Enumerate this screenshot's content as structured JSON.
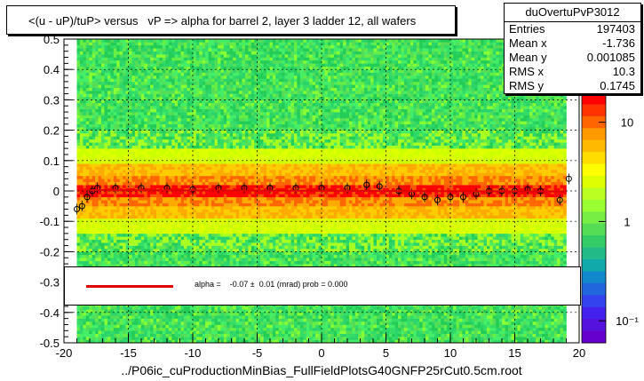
{
  "title": "<(u - uP)/tuP> versus   vP => alpha for barrel 2, layer 3 ladder 12, all wafers",
  "stats": {
    "name": "duOvertuPvP3012",
    "rows": [
      {
        "label": "Entries",
        "value": "197403"
      },
      {
        "label": "Mean x",
        "value": "-1.736"
      },
      {
        "label": "Mean y",
        "value": "0.001085"
      },
      {
        "label": "RMS x",
        "value": "10.3"
      },
      {
        "label": "RMS y",
        "value": "0.1745"
      }
    ]
  },
  "fit": {
    "text": "alpha =    -0.07 ±  0.01 (mrad) prob = 0.000",
    "line_color": "#e00000"
  },
  "footer": "../P06ic_cuProductionMinBias_FullFieldPlotsG40GNFP25rCut0.5cm.root",
  "chart_data": {
    "type": "heatmap",
    "title": "<(u - uP)/tuP> versus   vP => alpha for barrel 2, layer 3 ladder 12, all wafers",
    "xlim": [
      -20,
      20
    ],
    "ylim": [
      -0.5,
      0.5
    ],
    "x_ticks": [
      "-20",
      "-15",
      "-10",
      "-5",
      "0",
      "5",
      "10",
      "15",
      "20"
    ],
    "y_ticks": [
      "-0.5",
      "-0.4",
      "-0.3",
      "-0.2",
      "-0.1",
      "0",
      "0.1",
      "0.2",
      "0.3",
      "0.4",
      "0.5"
    ],
    "x_tick_values": [
      -20,
      -15,
      -10,
      -5,
      0,
      5,
      10,
      15,
      20
    ],
    "y_tick_values": [
      -0.5,
      -0.4,
      -0.3,
      -0.2,
      -0.1,
      0,
      0.1,
      0.2,
      0.3,
      0.4,
      0.5
    ],
    "grid": true,
    "z_log": true,
    "z_ticks": [
      "10",
      "1",
      "10⁻¹"
    ],
    "z_tick_values": [
      10,
      1,
      0.1
    ],
    "colors": {
      "band_core": "#ff0000",
      "band_mid": "#ffaa00",
      "band_outer": "#ccff00",
      "background": "#44dd66",
      "fit_line": "#e00000"
    },
    "occupied_x": [
      -19,
      19
    ],
    "profile_points": [
      {
        "x": -19.0,
        "y": -0.06
      },
      {
        "x": -18.6,
        "y": -0.05
      },
      {
        "x": -18.2,
        "y": -0.02
      },
      {
        "x": -17.8,
        "y": 0.0
      },
      {
        "x": -17.4,
        "y": 0.01
      },
      {
        "x": -16.0,
        "y": 0.01
      },
      {
        "x": -14.0,
        "y": 0.01
      },
      {
        "x": -12.0,
        "y": 0.01
      },
      {
        "x": -10.0,
        "y": 0.005
      },
      {
        "x": -8.0,
        "y": 0.01
      },
      {
        "x": -6.0,
        "y": 0.01
      },
      {
        "x": -4.0,
        "y": 0.01
      },
      {
        "x": -2.0,
        "y": 0.01
      },
      {
        "x": 0.0,
        "y": 0.01
      },
      {
        "x": 2.0,
        "y": 0.01
      },
      {
        "x": 3.5,
        "y": 0.02
      },
      {
        "x": 4.5,
        "y": 0.015
      },
      {
        "x": 6.0,
        "y": 0.0
      },
      {
        "x": 7.0,
        "y": -0.01
      },
      {
        "x": 8.0,
        "y": -0.02
      },
      {
        "x": 9.0,
        "y": -0.03
      },
      {
        "x": 10.0,
        "y": -0.02
      },
      {
        "x": 11.0,
        "y": -0.02
      },
      {
        "x": 12.0,
        "y": -0.01
      },
      {
        "x": 13.0,
        "y": 0.0
      },
      {
        "x": 14.0,
        "y": 0.0
      },
      {
        "x": 15.0,
        "y": 0.0
      },
      {
        "x": 16.0,
        "y": 0.005
      },
      {
        "x": 17.0,
        "y": 0.0
      },
      {
        "x": 18.5,
        "y": -0.03
      },
      {
        "x": 19.2,
        "y": 0.04
      }
    ],
    "fit_line": {
      "x": [
        -18,
        19
      ],
      "y": [
        0.003,
        -0.002
      ]
    }
  }
}
